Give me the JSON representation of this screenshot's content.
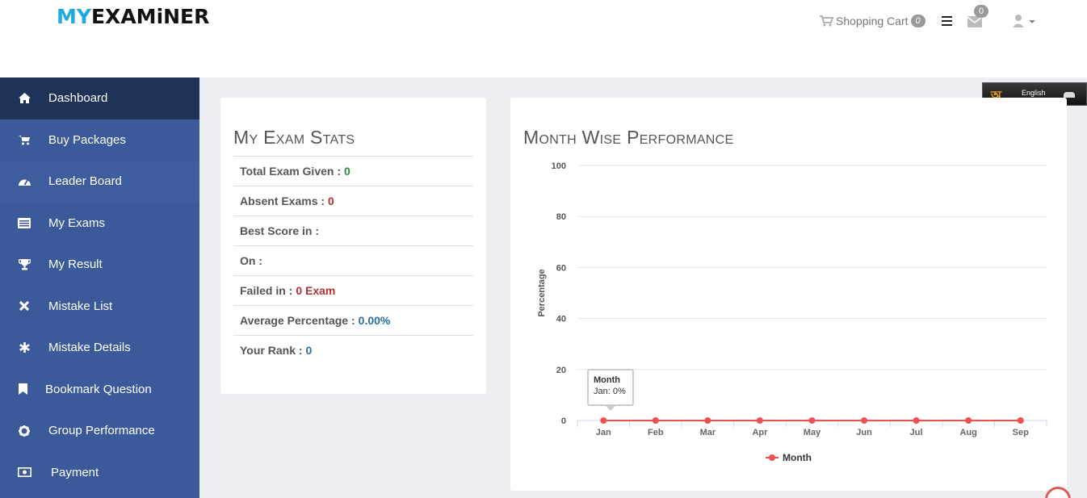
{
  "header": {
    "logo_part1": "MY",
    "logo_part2": "EXAMiNER",
    "cart_label": "Shopping Cart",
    "cart_count": "0",
    "mail_count": "0"
  },
  "sidebar": {
    "items": [
      {
        "label": "Dashboard",
        "icon": "home-icon"
      },
      {
        "label": "Buy Packages",
        "icon": "cart-icon"
      },
      {
        "label": "Leader Board",
        "icon": "dashboard-gauge-icon"
      },
      {
        "label": "My Exams",
        "icon": "list-icon"
      },
      {
        "label": "My Result",
        "icon": "trophy-icon"
      },
      {
        "label": "Mistake List",
        "icon": "close-icon"
      },
      {
        "label": "Mistake Details",
        "icon": "asterisk-icon"
      },
      {
        "label": "Bookmark Question",
        "icon": "bookmark-icon"
      },
      {
        "label": "Group Performance",
        "icon": "gear-icon"
      },
      {
        "label": "Payment",
        "icon": "money-icon"
      }
    ]
  },
  "language": {
    "selected": "English"
  },
  "stats": {
    "title": "My Exam Stats",
    "rows": [
      {
        "label": "Total Exam Given :",
        "value": "0"
      },
      {
        "label": "Absent Exams :",
        "value": "0"
      },
      {
        "label": "Best Score in :",
        "value": ""
      },
      {
        "label": "On :",
        "value": ""
      },
      {
        "label": "Failed in :",
        "value": "0 Exam"
      },
      {
        "label": "Average Percentage :",
        "value": "0.00%"
      },
      {
        "label": "Your Rank :",
        "value": "0"
      }
    ]
  },
  "performance": {
    "title": "Month Wise Performance",
    "tooltip_title": "Month",
    "tooltip_value": "Jan: 0%"
  },
  "chart_data": {
    "type": "line",
    "categories": [
      "Jan",
      "Feb",
      "Mar",
      "Apr",
      "May",
      "Jun",
      "Jul",
      "Aug",
      "Sep"
    ],
    "series": [
      {
        "name": "Month",
        "values": [
          0,
          0,
          0,
          0,
          0,
          0,
          0,
          0,
          0
        ]
      }
    ],
    "ylabel": "Percentage",
    "yticks": [
      "0",
      "20",
      "40",
      "60",
      "80",
      "100"
    ],
    "ylim": [
      0,
      100
    ],
    "grid": true,
    "legend": "bottom-center",
    "series_color": "#f05050"
  }
}
